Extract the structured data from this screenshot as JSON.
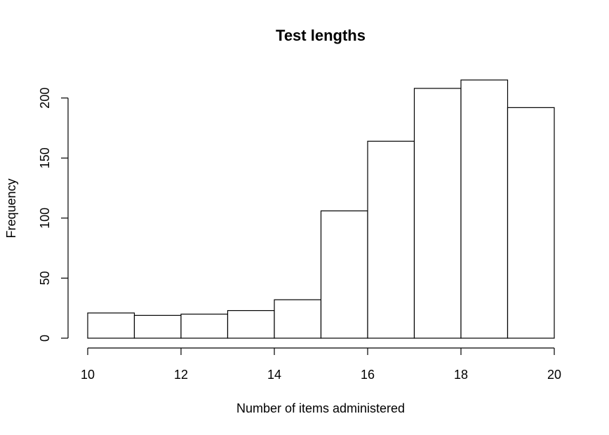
{
  "chart_data": {
    "type": "bar",
    "title": "Test lengths",
    "xlabel": "Number of items administered",
    "ylabel": "Frequency",
    "bins": [
      {
        "start": 10,
        "end": 11,
        "value": 21
      },
      {
        "start": 11,
        "end": 12,
        "value": 19
      },
      {
        "start": 12,
        "end": 13,
        "value": 20
      },
      {
        "start": 13,
        "end": 14,
        "value": 23
      },
      {
        "start": 14,
        "end": 15,
        "value": 32
      },
      {
        "start": 15,
        "end": 16,
        "value": 106
      },
      {
        "start": 16,
        "end": 17,
        "value": 164
      },
      {
        "start": 17,
        "end": 18,
        "value": 208
      },
      {
        "start": 18,
        "end": 19,
        "value": 215
      },
      {
        "start": 19,
        "end": 20,
        "value": 192
      }
    ],
    "xlim": [
      10,
      20
    ],
    "ylim": [
      0,
      215
    ],
    "xticks": [
      10,
      12,
      14,
      16,
      18,
      20
    ],
    "yticks": [
      0,
      50,
      100,
      150,
      200
    ],
    "grid": false,
    "colors": {
      "bar_fill": "#ffffff",
      "bar_stroke": "#000000"
    }
  }
}
